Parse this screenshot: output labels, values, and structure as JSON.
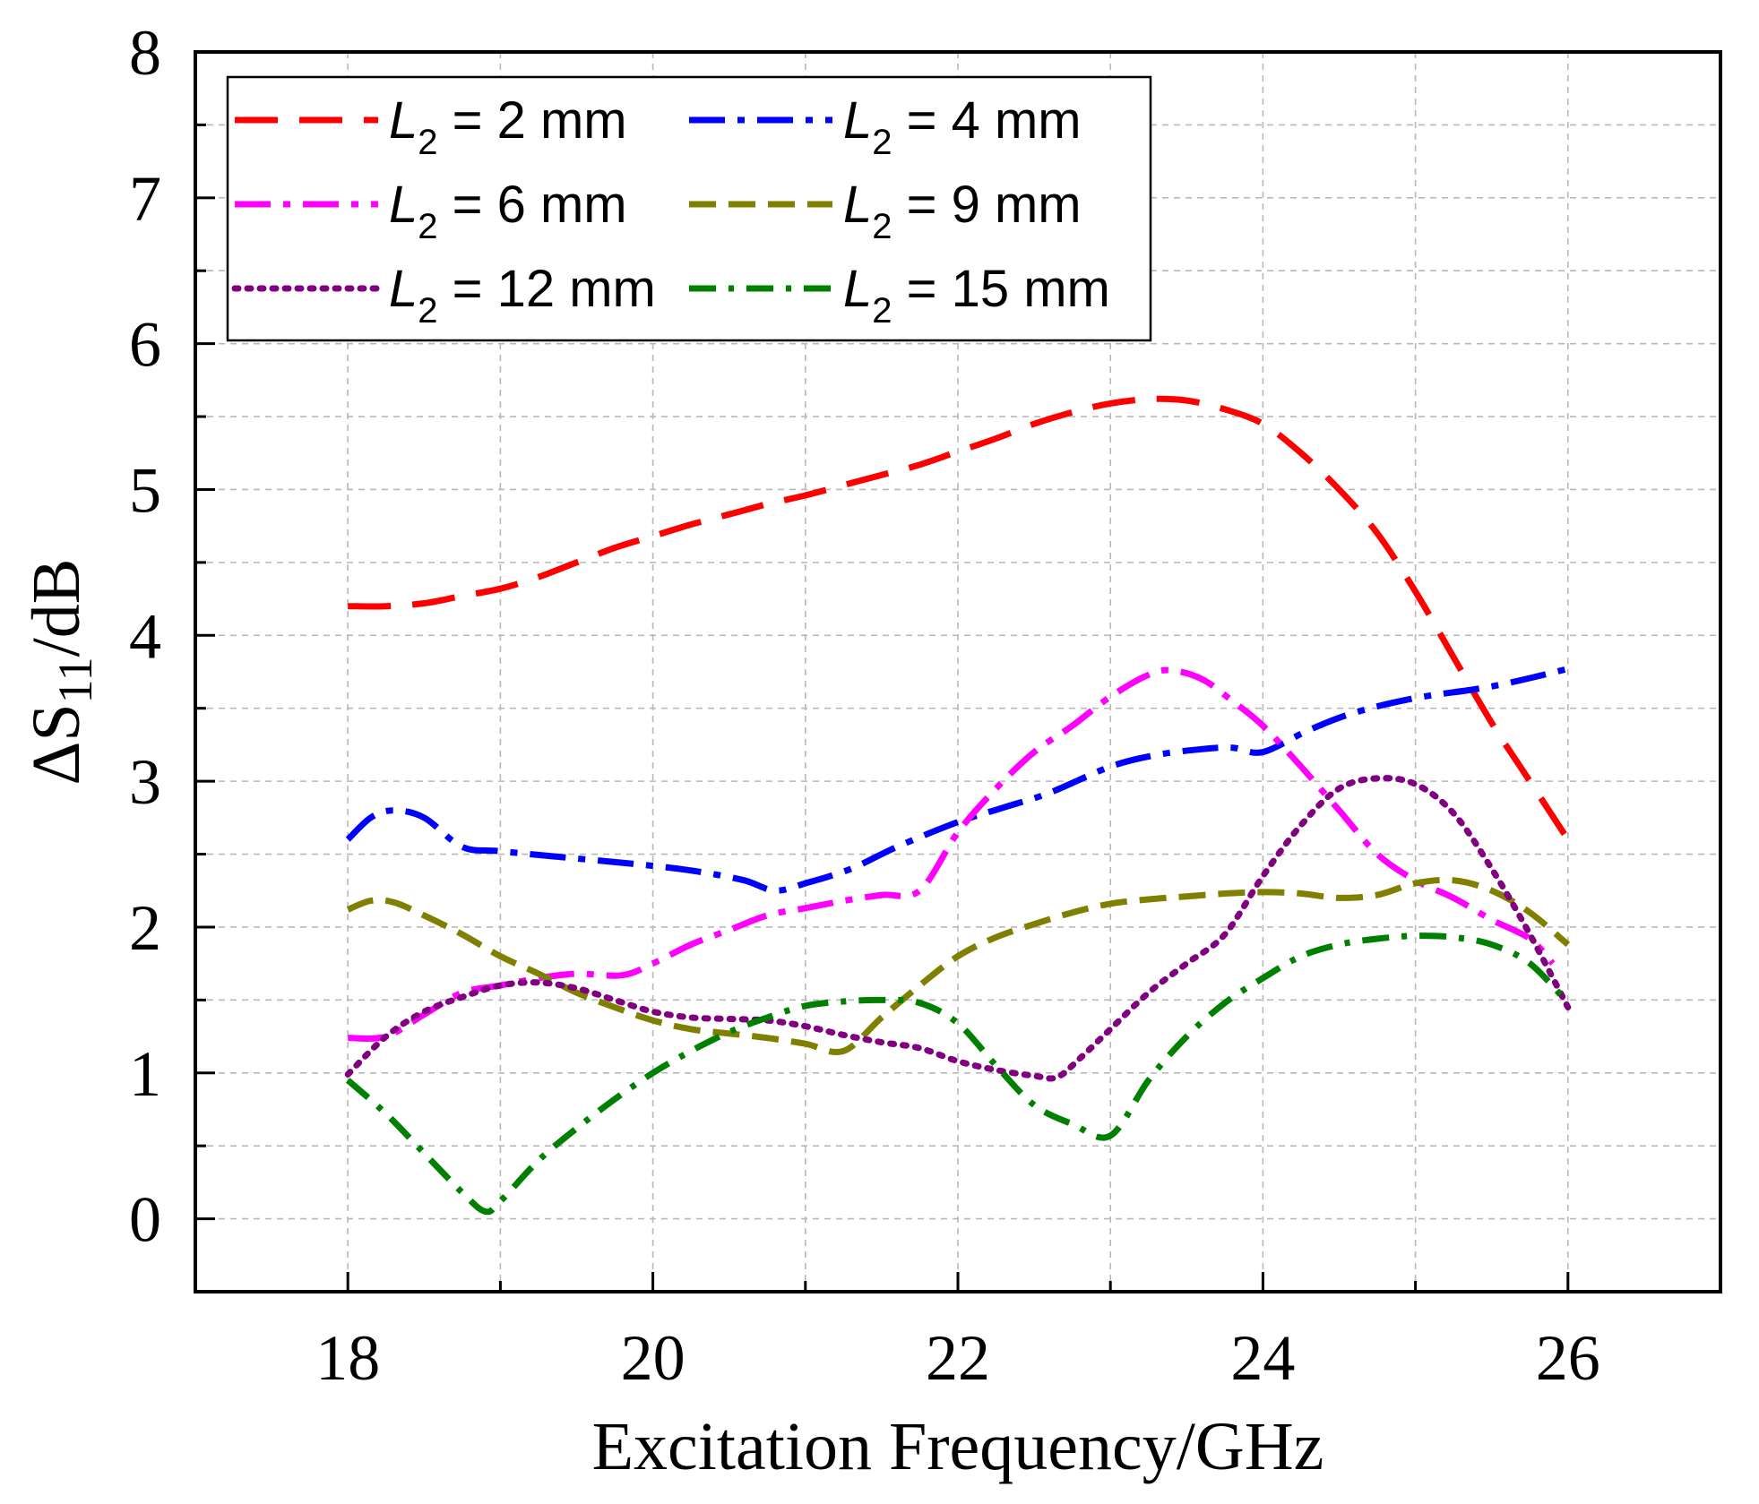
{
  "chart_data": {
    "type": "line",
    "title": "",
    "xlabel": "Excitation Frequency/GHz",
    "ylabel_prefix": "ΔS",
    "ylabel_sub": "11",
    "ylabel_suffix": "/dB",
    "xlim": [
      17,
      27
    ],
    "ylim": [
      -0.5,
      8
    ],
    "xticks": [
      18,
      20,
      22,
      24,
      26
    ],
    "yticks": [
      0,
      1,
      2,
      3,
      4,
      5,
      6,
      7,
      8
    ],
    "grid": true,
    "legend_position": "top-left",
    "series": [
      {
        "name": "L2 = 2 mm",
        "legend_var": "L",
        "legend_sub": "2",
        "legend_rest": " = 2 mm",
        "color": "#ff0000",
        "dash": "48 24",
        "x": [
          18,
          18.25,
          18.5,
          18.75,
          19,
          19.25,
          19.5,
          19.75,
          20,
          20.25,
          20.5,
          20.75,
          21,
          21.25,
          21.5,
          21.75,
          22,
          22.25,
          22.5,
          22.75,
          23,
          23.25,
          23.5,
          23.75,
          24,
          24.25,
          24.5,
          24.75,
          25,
          25.25,
          25.5,
          25.75,
          26
        ],
        "y": [
          4.2,
          4.2,
          4.22,
          4.27,
          4.32,
          4.4,
          4.5,
          4.6,
          4.68,
          4.76,
          4.83,
          4.9,
          4.96,
          5.03,
          5.1,
          5.17,
          5.26,
          5.35,
          5.45,
          5.53,
          5.59,
          5.62,
          5.61,
          5.55,
          5.45,
          5.25,
          5.0,
          4.7,
          4.3,
          3.85,
          3.4,
          3.0,
          2.6
        ]
      },
      {
        "name": "L2 = 4 mm",
        "legend_var": "L",
        "legend_sub": "2",
        "legend_rest": " = 4 mm",
        "color": "#0000ff",
        "dash": "40 14 8 14",
        "x": [
          18,
          18.15,
          18.3,
          18.5,
          18.75,
          19,
          19.5,
          20,
          20.3,
          20.6,
          20.8,
          21,
          21.3,
          21.6,
          22,
          22.3,
          22.6,
          23,
          23.3,
          23.6,
          23.8,
          24,
          24.3,
          24.6,
          25,
          25.5,
          26
        ],
        "y": [
          2.6,
          2.75,
          2.8,
          2.75,
          2.55,
          2.52,
          2.47,
          2.42,
          2.38,
          2.32,
          2.25,
          2.3,
          2.4,
          2.55,
          2.72,
          2.82,
          2.92,
          3.1,
          3.18,
          3.22,
          3.23,
          3.2,
          3.35,
          3.47,
          3.57,
          3.65,
          3.77
        ]
      },
      {
        "name": "L2 = 6 mm",
        "legend_var": "L",
        "legend_sub": "2",
        "legend_rest": " = 6 mm",
        "color": "#ff00ff",
        "dash": "40 14 8 14",
        "x": [
          18,
          18.25,
          18.5,
          18.75,
          19,
          19.25,
          19.5,
          19.8,
          20,
          20.25,
          20.5,
          20.75,
          21,
          21.25,
          21.5,
          21.75,
          22,
          22.25,
          22.5,
          22.75,
          23,
          23.25,
          23.4,
          23.6,
          23.8,
          24,
          24.25,
          24.5,
          24.75,
          25,
          25.25,
          25.5,
          25.75,
          25.9
        ],
        "y": [
          1.24,
          1.25,
          1.4,
          1.55,
          1.6,
          1.65,
          1.68,
          1.67,
          1.75,
          1.88,
          1.98,
          2.08,
          2.13,
          2.18,
          2.22,
          2.25,
          2.65,
          2.95,
          3.2,
          3.38,
          3.58,
          3.73,
          3.76,
          3.7,
          3.55,
          3.38,
          3.1,
          2.8,
          2.5,
          2.32,
          2.2,
          2.05,
          1.92,
          1.75
        ]
      },
      {
        "name": "L2 = 9 mm",
        "legend_var": "L",
        "legend_sub": "2",
        "legend_rest": " = 9 mm",
        "color": "#808000",
        "dash": "30 14",
        "x": [
          18,
          18.15,
          18.3,
          18.5,
          18.75,
          19,
          19.25,
          19.5,
          19.75,
          20,
          20.25,
          20.5,
          20.75,
          21,
          21.25,
          21.5,
          21.75,
          22,
          22.25,
          22.5,
          22.75,
          23,
          23.25,
          23.5,
          23.75,
          24,
          24.25,
          24.5,
          24.75,
          25,
          25.25,
          25.5,
          25.75,
          26
        ],
        "y": [
          2.12,
          2.18,
          2.17,
          2.08,
          1.95,
          1.8,
          1.68,
          1.55,
          1.45,
          1.36,
          1.3,
          1.27,
          1.24,
          1.2,
          1.15,
          1.38,
          1.6,
          1.8,
          1.93,
          2.02,
          2.1,
          2.16,
          2.19,
          2.21,
          2.23,
          2.24,
          2.23,
          2.2,
          2.22,
          2.3,
          2.32,
          2.25,
          2.1,
          1.88
        ]
      },
      {
        "name": "L2 = 12 mm",
        "legend_var": "L",
        "legend_sub": "2",
        "legend_rest": " = 12 mm",
        "color": "#800080",
        "dash": "4 10",
        "x": [
          18,
          18.25,
          18.5,
          18.75,
          19,
          19.25,
          19.5,
          19.75,
          20,
          20.25,
          20.5,
          20.75,
          21,
          21.25,
          21.5,
          21.75,
          22,
          22.25,
          22.5,
          22.65,
          22.8,
          23,
          23.25,
          23.5,
          23.75,
          24,
          24.25,
          24.5,
          24.75,
          25,
          25.25,
          25.5,
          25.75,
          26
        ],
        "y": [
          0.99,
          1.25,
          1.42,
          1.52,
          1.6,
          1.62,
          1.58,
          1.5,
          1.42,
          1.38,
          1.37,
          1.36,
          1.32,
          1.26,
          1.21,
          1.17,
          1.08,
          1.02,
          0.98,
          0.97,
          1.1,
          1.3,
          1.55,
          1.75,
          1.95,
          2.35,
          2.7,
          2.95,
          3.02,
          2.98,
          2.78,
          2.4,
          1.95,
          1.45
        ]
      },
      {
        "name": "L2 = 15 mm",
        "legend_var": "L",
        "legend_sub": "2",
        "legend_rest": " = 15 mm",
        "color": "#008000",
        "dash": "30 14 6 14",
        "x": [
          18,
          18.25,
          18.5,
          18.75,
          18.9,
          19,
          19.25,
          19.5,
          19.75,
          20,
          20.25,
          20.5,
          20.75,
          21,
          21.25,
          21.5,
          21.75,
          22,
          22.25,
          22.5,
          22.75,
          23,
          23.25,
          23.5,
          23.75,
          24,
          24.25,
          24.5,
          24.75,
          25,
          25.25,
          25.5,
          25.75,
          26
        ],
        "y": [
          0.95,
          0.72,
          0.45,
          0.18,
          0.05,
          0.12,
          0.4,
          0.62,
          0.82,
          1.0,
          1.15,
          1.28,
          1.38,
          1.46,
          1.49,
          1.5,
          1.48,
          1.34,
          1.05,
          0.78,
          0.65,
          0.57,
          0.95,
          1.25,
          1.48,
          1.65,
          1.8,
          1.88,
          1.92,
          1.94,
          1.93,
          1.88,
          1.75,
          1.48
        ]
      }
    ]
  }
}
